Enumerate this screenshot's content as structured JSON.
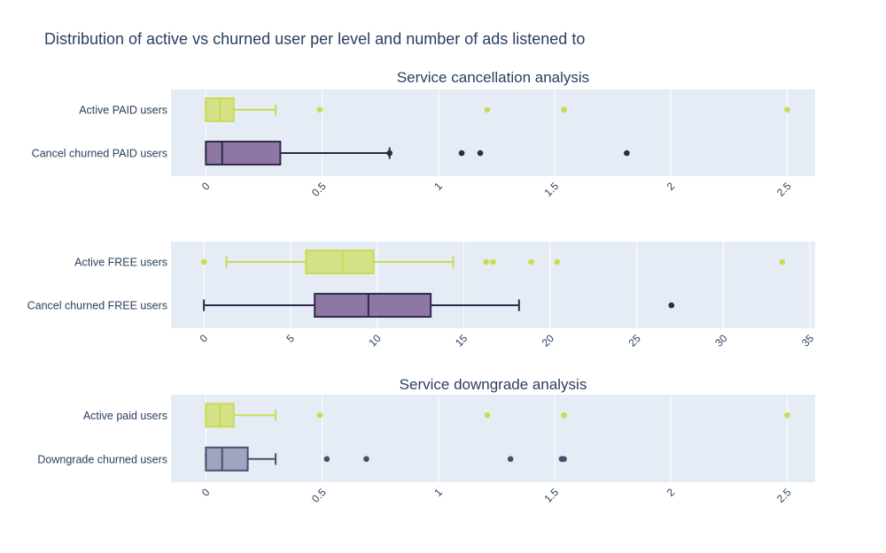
{
  "title": "Distribution of active vs churned user per level and number of ads listened to",
  "colors": {
    "active_fill": "rgba(206,221,96,0.75)",
    "active_line": "#c9dc52",
    "churn_fill": "rgba(135,110,155,0.92)",
    "churn_line": "#2d2a4a",
    "downgrade_fill": "rgba(135,140,175,0.75)",
    "downgrade_line": "#4a4f6e",
    "plot_bg": "#e5ecf6"
  },
  "chart_data": [
    {
      "type": "box",
      "orientation": "horizontal",
      "title": "Service cancellation analysis",
      "xlim": [
        -0.15,
        2.62
      ],
      "xticks": [
        0,
        0.5,
        1,
        1.5,
        2,
        2.5
      ],
      "xtick_labels": [
        "0",
        "0.5",
        "1",
        "1.5",
        "2",
        "2.5"
      ],
      "series": [
        {
          "name": "Active PAID users",
          "style": "active",
          "whisker_low": 0,
          "q1": 0,
          "median": 0.06,
          "q3": 0.12,
          "whisker_high": 0.3,
          "outliers": [
            0.49,
            1.21,
            1.54,
            2.5
          ]
        },
        {
          "name": "Cancel churned PAID users",
          "style": "churn",
          "whisker_low": 0,
          "q1": 0,
          "median": 0.07,
          "q3": 0.32,
          "whisker_high": 0.79,
          "outliers": [
            0.79,
            1.1,
            1.18,
            1.81
          ]
        }
      ]
    },
    {
      "type": "box",
      "orientation": "horizontal",
      "title": "",
      "xlim": [
        -1.9,
        35.3
      ],
      "xticks": [
        0,
        5,
        10,
        15,
        20,
        25,
        30,
        35
      ],
      "xtick_labels": [
        "0",
        "5",
        "10",
        "15",
        "20",
        "25",
        "30",
        "35"
      ],
      "series": [
        {
          "name": "Active FREE users",
          "style": "active",
          "whisker_low": 1.3,
          "q1": 5.9,
          "median": 8.0,
          "q3": 9.8,
          "whisker_high": 14.4,
          "outliers": [
            0,
            16.3,
            16.7,
            18.9,
            20.4,
            33.4
          ]
        },
        {
          "name": "Cancel churned FREE users",
          "style": "churn",
          "whisker_low": 0,
          "q1": 6.4,
          "median": 9.5,
          "q3": 13.1,
          "whisker_high": 18.2,
          "outliers": [
            27.0
          ]
        }
      ]
    },
    {
      "type": "box",
      "orientation": "horizontal",
      "title": "Service downgrade analysis",
      "xlim": [
        -0.15,
        2.62
      ],
      "xticks": [
        0,
        0.5,
        1,
        1.5,
        2,
        2.5
      ],
      "xtick_labels": [
        "0",
        "0.5",
        "1",
        "1.5",
        "2",
        "2.5"
      ],
      "series": [
        {
          "name": "Active paid users",
          "style": "active",
          "whisker_low": 0,
          "q1": 0,
          "median": 0.06,
          "q3": 0.12,
          "whisker_high": 0.3,
          "outliers": [
            0.49,
            1.21,
            1.54,
            2.5
          ]
        },
        {
          "name": "Downgrade churned users",
          "style": "downgrade",
          "whisker_low": 0,
          "q1": 0,
          "median": 0.07,
          "q3": 0.18,
          "whisker_high": 0.3,
          "outliers": [
            0.52,
            0.69,
            1.31,
            1.53,
            1.54
          ]
        }
      ]
    }
  ]
}
